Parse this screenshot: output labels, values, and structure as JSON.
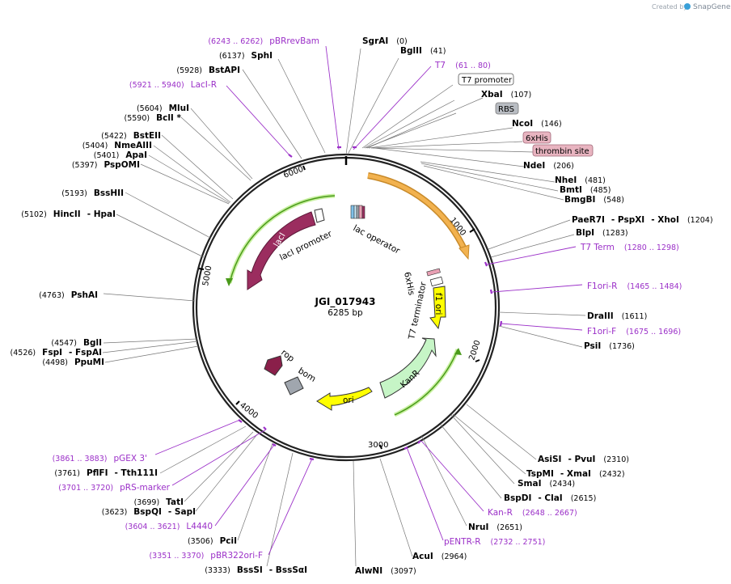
{
  "credit": {
    "prefix": "Created by",
    "brand": "SnapGene"
  },
  "plasmid": {
    "name": "JGI_017943",
    "size_label": "6285 bp"
  },
  "ticks": [
    "1000",
    "2000",
    "3000",
    "4000",
    "5000",
    "6000"
  ],
  "enzymes": {
    "sgrai": {
      "name": "SgrAI",
      "pos": "(0)"
    },
    "bglii": {
      "name": "BglII",
      "pos": "(41)"
    },
    "xbai": {
      "name": "XbaI",
      "pos": "(107)"
    },
    "ncoi": {
      "name": "NcoI",
      "pos": "(146)"
    },
    "ndei": {
      "name": "NdeI",
      "pos": "(206)"
    },
    "nhei": {
      "name": "NheI",
      "pos": "(481)"
    },
    "bmti": {
      "name": "BmtI",
      "pos": "(485)"
    },
    "bmgbi": {
      "name": "BmgBI",
      "pos": "(548)"
    },
    "paer7i": {
      "name": "PaeR7I",
      "sep1": "- PspXI",
      "sep2": "- XhoI",
      "pos": "(1204)"
    },
    "blpi": {
      "name": "BlpI",
      "pos": "(1283)"
    },
    "draiii": {
      "name": "DraIII",
      "pos": "(1611)"
    },
    "psii": {
      "name": "PsiI",
      "pos": "(1736)"
    },
    "asisi": {
      "name": "AsiSI",
      "sep": "- PvuI",
      "pos": "(2310)"
    },
    "tspmi": {
      "name": "TspMI",
      "sep": "- XmaI",
      "pos": "(2432)"
    },
    "smai": {
      "name": "SmaI",
      "pos": "(2434)"
    },
    "bspdi": {
      "name": "BspDI",
      "sep": "- ClaI",
      "pos": "(2615)"
    },
    "frui": {
      "name": "NruI",
      "pos": "(2651)"
    },
    "acui": {
      "name": "AcuI",
      "pos": "(2964)"
    },
    "alwni": {
      "name": "AlwNI",
      "pos": "(3097)"
    },
    "bsssi": {
      "name": "BssSI",
      "sep": "- BssSαI",
      "pos": "(3333)"
    },
    "pcii": {
      "name": "PciI",
      "pos": "(3506)"
    },
    "bspqi": {
      "name": "BspQI",
      "sep": "- SapI",
      "pos": "(3623)"
    },
    "tati": {
      "name": "TatI",
      "pos": "(3699)"
    },
    "pflfi": {
      "name": "PflFI",
      "sep": "- Tth111I",
      "pos": "(3761)"
    },
    "ppumi": {
      "name": "PpuMI",
      "pos": "(4498)"
    },
    "fspi": {
      "name": "FspI",
      "sep": "- FspAI",
      "pos": "(4526)"
    },
    "bgli": {
      "name": "BglI",
      "pos": "(4547)"
    },
    "pshai": {
      "name": "PshAI",
      "pos": "(4763)"
    },
    "hincii": {
      "name": "HincII",
      "sep": "- HpaI",
      "pos": "(5102)"
    },
    "bsshii": {
      "name": "BssHII",
      "pos": "(5193)"
    },
    "pspomi": {
      "name": "PspOMI",
      "pos": "(5397)"
    },
    "apai": {
      "name": "ApaI",
      "pos": "(5401)"
    },
    "nmeaiii": {
      "name": "NmeAIII",
      "pos": "(5404)"
    },
    "bsteii": {
      "name": "BstEII",
      "pos": "(5422)"
    },
    "bcli": {
      "name": "BclI *",
      "pos": "(5590)"
    },
    "mlui": {
      "name": "MluI",
      "pos": "(5604)"
    },
    "bstapi": {
      "name": "BstAPI",
      "pos": "(5928)"
    },
    "sphi": {
      "name": "SphI",
      "pos": "(6137)"
    }
  },
  "primers": {
    "pbrrevbam": {
      "name": "pBRrevBam",
      "pos": "(6243 .. 6262)"
    },
    "t7": {
      "name": "T7",
      "pos": "(61 .. 80)"
    },
    "laci_r": {
      "name": "LacI-R",
      "pos": "(5921 .. 5940)"
    },
    "t7term": {
      "name": "T7 Term",
      "pos": "(1280 .. 1298)"
    },
    "f1ori_r": {
      "name": "F1ori-R",
      "pos": "(1465 .. 1484)"
    },
    "f1ori_f": {
      "name": "F1ori-F",
      "pos": "(1675 .. 1696)"
    },
    "kan_r": {
      "name": "Kan-R",
      "pos": "(2648 .. 2667)"
    },
    "pentr_r": {
      "name": "pENTR-R",
      "pos": "(2732 .. 2751)"
    },
    "pbr322ori_f": {
      "name": "pBR322ori-F",
      "pos": "(3351 .. 3370)"
    },
    "l4440": {
      "name": "L4440",
      "pos": "(3604 .. 3621)"
    },
    "prs_marker": {
      "name": "pRS-marker",
      "pos": "(3701 .. 3720)"
    },
    "pgex3": {
      "name": "pGEX 3'",
      "pos": "(3861 .. 3883)"
    }
  },
  "boxed": {
    "t7_promoter": "T7 promoter",
    "rbs": "RBS",
    "his": "6xHis",
    "thrombin": "thrombin site"
  },
  "features": {
    "laci": "lacI",
    "laci_promoter": "lacI promoter",
    "lac_operator": "lac operator",
    "his_inner": "6xHis",
    "f1_ori": "f1 ori",
    "t7_terminator": "T7 terminator",
    "kanr": "KanR",
    "ori": "ori",
    "rop": "rop",
    "bom": "bom"
  },
  "colors": {
    "primer": "#9b30c8",
    "backbone": "#222222",
    "cds_orange": "#f2b24f",
    "laci": "#9b2d5f",
    "f1": "#ffff00",
    "kanr": "#c6f5c6",
    "green_line": "#4a9a1a",
    "rop": "#8a1f4a",
    "bom": "#a0a6ae"
  }
}
